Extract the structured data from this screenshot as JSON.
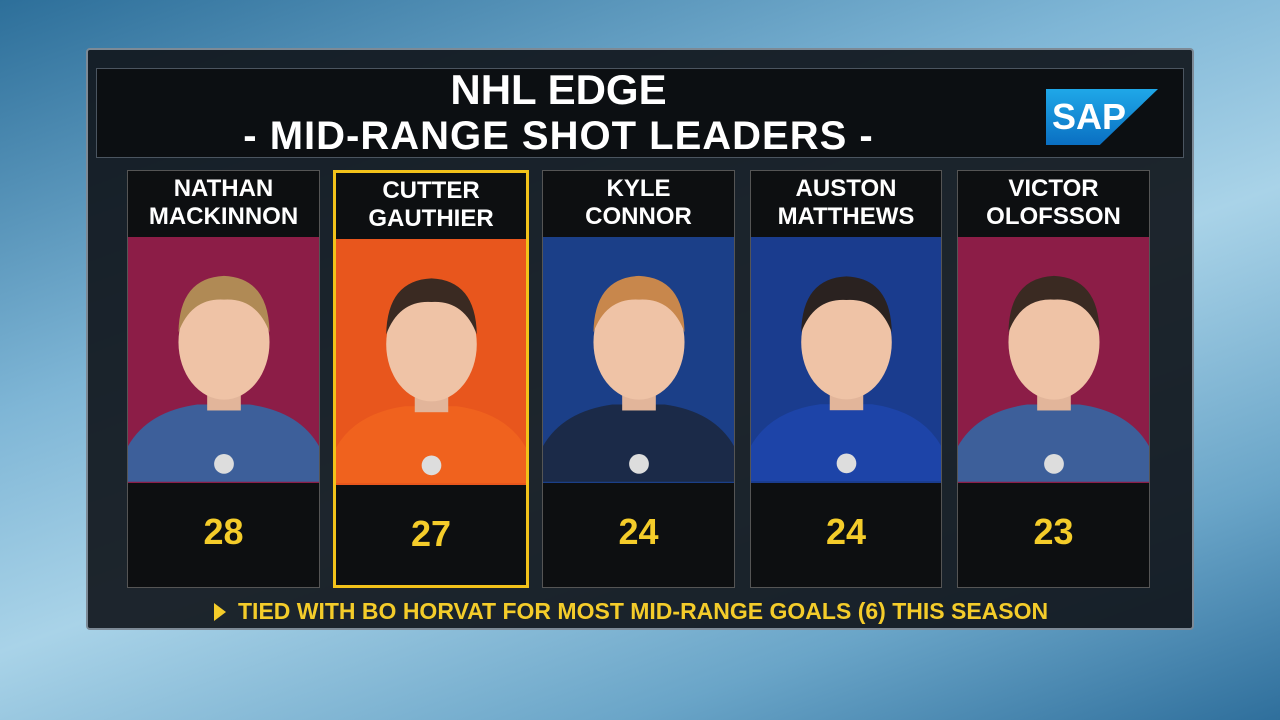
{
  "header": {
    "title": "NHL EDGE",
    "subtitle": "- MID-RANGE SHOT LEADERS -",
    "logo": "SAP"
  },
  "players": [
    {
      "first": "NATHAN",
      "last": "MACKINNON",
      "value": 28
    },
    {
      "first": "CUTTER",
      "last": "GAUTHIER",
      "value": 27
    },
    {
      "first": "KYLE",
      "last": "CONNOR",
      "value": 24
    },
    {
      "first": "AUSTON",
      "last": "MATTHEWS",
      "value": 24
    },
    {
      "first": "VICTOR",
      "last": "OLOFSSON",
      "value": 23
    }
  ],
  "footer": {
    "note": "TIED WITH BO HORVAT FOR MOST MID-RANGE GOALS (6) THIS SEASON"
  }
}
